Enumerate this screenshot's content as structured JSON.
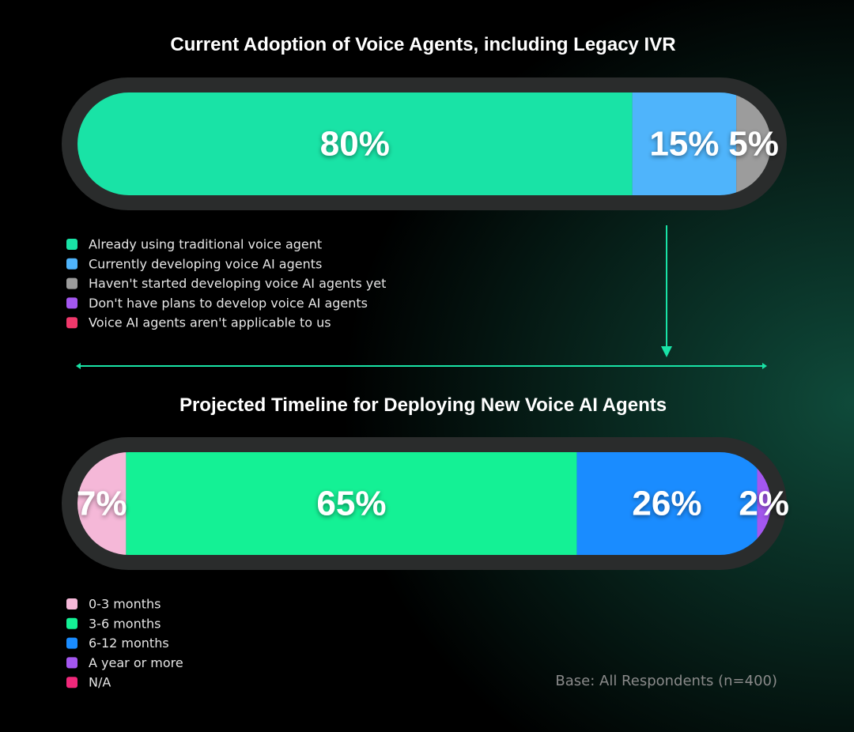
{
  "chart_data": [
    {
      "type": "bar",
      "stacked": true,
      "orientation": "horizontal",
      "title": "Current Adoption of Voice Agents, including Legacy IVR",
      "series": [
        {
          "name": "Already using traditional voice agent",
          "color": "#19e3a6",
          "values": [
            80
          ],
          "value_labels": [
            "80%"
          ]
        },
        {
          "name": "Currently developing voice AI agents",
          "color": "#4fb4fb",
          "values": [
            15
          ],
          "value_labels": [
            "15%"
          ]
        },
        {
          "name": "Haven't started developing voice AI agents yet",
          "color": "#9c9c9c",
          "values": [
            5
          ],
          "value_labels": [
            "5%"
          ]
        },
        {
          "name": "Don't have plans to develop voice AI agents",
          "color": "#a457f0",
          "values": [
            0
          ]
        },
        {
          "name": "Voice AI agents aren't applicable to us",
          "color": "#f0386b",
          "values": [
            0
          ]
        }
      ]
    },
    {
      "type": "bar",
      "stacked": true,
      "orientation": "horizontal",
      "title": "Projected Timeline for Deploying New Voice AI Agents",
      "series": [
        {
          "name": "0-3 months",
          "color": "#f5b8d8",
          "values": [
            7
          ],
          "value_labels": [
            "7%"
          ]
        },
        {
          "name": "3-6 months",
          "color": "#14f195",
          "values": [
            65
          ],
          "value_labels": [
            "65%"
          ]
        },
        {
          "name": "6-12 months",
          "color": "#1a8cff",
          "values": [
            26
          ],
          "value_labels": [
            "26%"
          ]
        },
        {
          "name": "A year or more",
          "color": "#a457f0",
          "values": [
            2
          ],
          "value_labels": [
            "2%"
          ]
        },
        {
          "name": "N/A",
          "color": "#f0287a",
          "values": [
            0
          ]
        }
      ]
    }
  ],
  "footnote": "Base: All Respondents (n=400)"
}
